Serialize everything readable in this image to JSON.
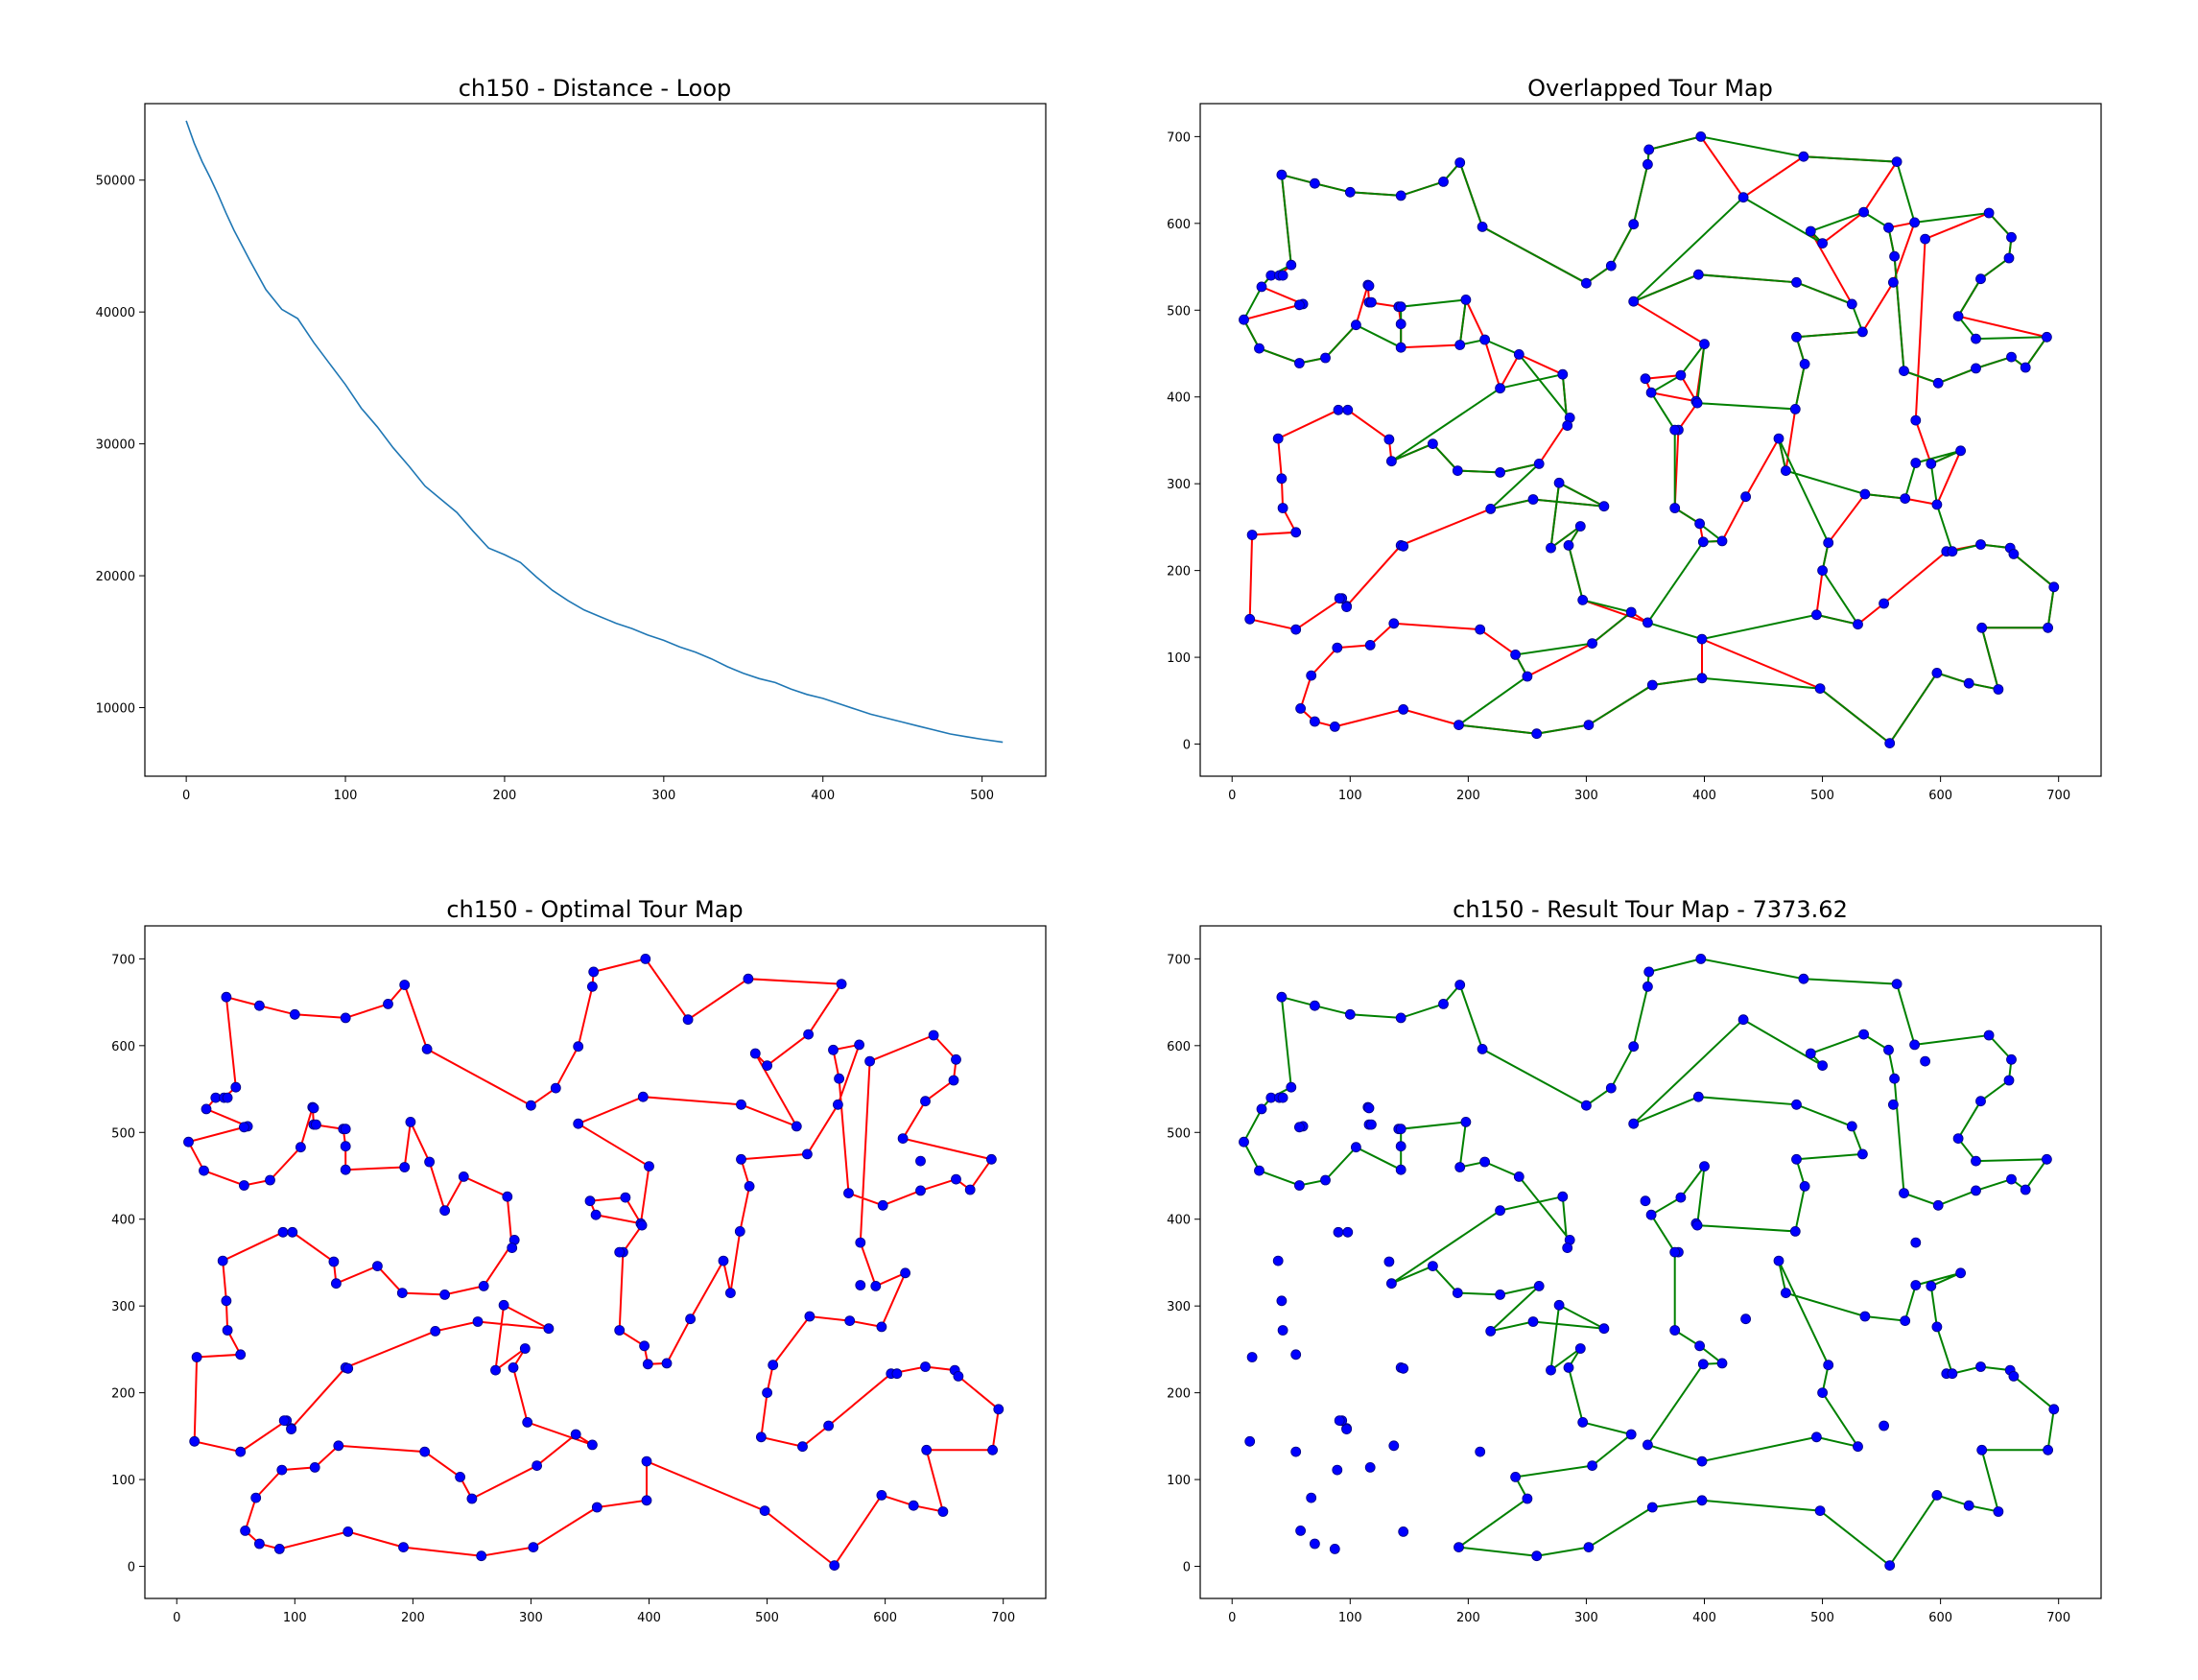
{
  "colors": {
    "loss_line": "#1f77b4",
    "optimal_tour": "#ff0000",
    "result_tour": "#008000",
    "city_marker": "#0000ff",
    "city_marker_edge": "#000080"
  },
  "chart_data": [
    {
      "type": "line",
      "title": "ch150 - Distance - Loop",
      "xlabel": "",
      "ylabel": "",
      "xlim": [
        -26,
        540
      ],
      "ylim": [
        4800,
        55800
      ],
      "xticks": [
        0,
        100,
        200,
        300,
        400,
        500
      ],
      "yticks": [
        10000,
        20000,
        30000,
        40000,
        50000
      ],
      "grid": false,
      "series": [
        {
          "x": [
            0,
            5,
            10,
            15,
            20,
            25,
            30,
            40,
            50,
            60,
            70,
            80,
            90,
            100,
            110,
            120,
            130,
            140,
            150,
            160,
            170,
            180,
            190,
            200,
            210,
            220,
            230,
            240,
            250,
            260,
            270,
            280,
            290,
            300,
            310,
            320,
            330,
            340,
            350,
            360,
            370,
            380,
            390,
            400,
            410,
            420,
            430,
            440,
            450,
            460,
            470,
            480,
            490,
            500,
            513
          ],
          "y": [
            54500,
            52800,
            51400,
            50200,
            48900,
            47500,
            46200,
            43900,
            41700,
            40200,
            39500,
            37700,
            36100,
            34500,
            32700,
            31300,
            29700,
            28300,
            26800,
            25800,
            24800,
            23400,
            22100,
            21600,
            21000,
            19900,
            18900,
            18100,
            17400,
            16900,
            16400,
            16000,
            15500,
            15100,
            14600,
            14200,
            13700,
            13100,
            12600,
            12200,
            11900,
            11400,
            11000,
            10700,
            10300,
            9900,
            9500,
            9200,
            8900,
            8600,
            8300,
            8000,
            7800,
            7600,
            7374
          ]
        }
      ]
    },
    {
      "type": "line",
      "title": "Overlapped Tour Map",
      "xlim": [
        -27,
        736
      ],
      "ylim": [
        -37,
        738
      ],
      "xticks": [
        0,
        100,
        200,
        300,
        400,
        500,
        600,
        700
      ],
      "yticks": [
        0,
        100,
        200,
        300,
        400,
        500,
        600,
        700
      ],
      "grid": false,
      "series": [
        {
          "source": "optimal_tour",
          "color": "#ff0000"
        },
        {
          "source": "result_tour",
          "color": "#008000"
        }
      ]
    },
    {
      "type": "line",
      "title": "ch150 - Optimal Tour Map",
      "xlim": [
        -27,
        736
      ],
      "ylim": [
        -37,
        738
      ],
      "xticks": [
        0,
        100,
        200,
        300,
        400,
        500,
        600,
        700
      ],
      "yticks": [
        0,
        100,
        200,
        300,
        400,
        500,
        600,
        700
      ],
      "grid": false,
      "series": [
        {
          "source": "optimal_tour",
          "color": "#ff0000"
        }
      ]
    },
    {
      "type": "line",
      "title": "ch150 - Result Tour Map - 7373.62",
      "xlim": [
        -27,
        736
      ],
      "ylim": [
        -37,
        738
      ],
      "xticks": [
        0,
        100,
        200,
        300,
        400,
        500,
        600,
        700
      ],
      "yticks": [
        0,
        100,
        200,
        300,
        400,
        500,
        600,
        700
      ],
      "grid": false,
      "series": [
        {
          "source": "result_tour",
          "color": "#008000"
        }
      ]
    }
  ],
  "optimal_tour": [
    [
      42,
      656
    ],
    [
      70,
      646
    ],
    [
      100,
      636
    ],
    [
      143,
      632
    ],
    [
      179,
      648
    ],
    [
      193,
      670
    ],
    [
      212,
      596
    ],
    [
      300,
      531
    ],
    [
      321,
      551
    ],
    [
      340,
      599
    ],
    [
      352,
      668
    ],
    [
      353,
      685
    ],
    [
      397,
      700
    ],
    [
      433,
      630
    ],
    [
      484,
      677
    ],
    [
      563,
      671
    ],
    [
      535,
      613
    ],
    [
      500,
      577
    ],
    [
      490,
      591
    ],
    [
      525,
      507
    ],
    [
      478,
      532
    ],
    [
      395,
      541
    ],
    [
      340,
      510
    ],
    [
      400,
      461
    ],
    [
      393,
      395
    ],
    [
      355,
      405
    ],
    [
      350,
      421
    ],
    [
      380,
      425
    ],
    [
      394,
      393
    ],
    [
      378,
      362
    ],
    [
      375,
      272
    ],
    [
      396,
      254
    ],
    [
      399,
      233
    ],
    [
      415,
      234
    ],
    [
      435,
      285
    ],
    [
      463,
      352
    ],
    [
      469,
      315
    ],
    [
      477,
      386
    ],
    [
      485,
      438
    ],
    [
      478,
      469
    ],
    [
      534,
      475
    ],
    [
      560,
      532
    ],
    [
      578,
      601
    ],
    [
      556,
      595
    ],
    [
      561,
      562
    ],
    [
      569,
      430
    ],
    [
      598,
      416
    ],
    [
      630,
      433
    ],
    [
      660,
      446
    ],
    [
      672,
      434
    ],
    [
      690,
      469
    ],
    [
      615,
      493
    ],
    [
      634,
      536
    ],
    [
      658,
      560
    ],
    [
      660,
      584
    ],
    [
      641,
      612
    ],
    [
      587,
      582
    ],
    [
      579,
      373
    ],
    [
      592,
      323
    ],
    [
      617,
      338
    ],
    [
      597,
      276
    ],
    [
      570,
      283
    ],
    [
      536,
      288
    ],
    [
      505,
      232
    ],
    [
      500,
      200
    ],
    [
      495,
      149
    ],
    [
      530,
      138
    ],
    [
      552,
      162
    ],
    [
      605,
      222
    ],
    [
      634,
      230
    ],
    [
      659,
      226
    ],
    [
      662,
      219
    ],
    [
      696,
      181
    ],
    [
      691,
      134
    ],
    [
      635,
      134
    ],
    [
      649,
      63
    ],
    [
      624,
      70
    ],
    [
      597,
      82
    ],
    [
      557,
      1
    ],
    [
      498,
      64
    ],
    [
      398,
      121
    ],
    [
      398,
      76
    ],
    [
      356,
      68
    ],
    [
      302,
      22
    ],
    [
      258,
      12
    ],
    [
      192,
      22
    ],
    [
      145,
      40
    ],
    [
      87,
      20
    ],
    [
      70,
      26
    ],
    [
      58,
      41
    ],
    [
      67,
      79
    ],
    [
      89,
      111
    ],
    [
      117,
      114
    ],
    [
      137,
      139
    ],
    [
      210,
      132
    ],
    [
      240,
      103
    ],
    [
      250,
      78
    ],
    [
      305,
      116
    ],
    [
      338,
      152
    ],
    [
      352,
      140
    ],
    [
      297,
      166
    ],
    [
      285,
      229
    ],
    [
      295,
      251
    ],
    [
      270,
      226
    ],
    [
      277,
      301
    ],
    [
      315,
      274
    ],
    [
      255,
      282
    ],
    [
      219,
      271
    ],
    [
      143,
      229
    ],
    [
      97,
      159
    ],
    [
      93,
      168
    ],
    [
      54,
      132
    ],
    [
      15,
      144
    ],
    [
      17,
      241
    ],
    [
      54,
      244
    ],
    [
      43,
      272
    ],
    [
      42,
      306
    ],
    [
      39,
      352
    ],
    [
      90,
      385
    ],
    [
      98,
      385
    ],
    [
      133,
      351
    ],
    [
      135,
      326
    ],
    [
      170,
      346
    ],
    [
      191,
      315
    ],
    [
      227,
      313
    ],
    [
      260,
      323
    ],
    [
      286,
      376
    ],
    [
      284,
      367
    ],
    [
      280,
      426
    ],
    [
      243,
      449
    ],
    [
      227,
      410
    ],
    [
      214,
      466
    ],
    [
      198,
      512
    ],
    [
      193,
      460
    ],
    [
      143,
      457
    ],
    [
      143,
      484
    ],
    [
      141,
      504
    ],
    [
      116,
      509
    ],
    [
      115,
      529
    ],
    [
      105,
      483
    ],
    [
      79,
      445
    ],
    [
      57,
      439
    ],
    [
      23,
      456
    ],
    [
      10,
      489
    ],
    [
      60,
      507
    ],
    [
      25,
      527
    ],
    [
      33,
      540
    ],
    [
      40,
      540
    ],
    [
      50,
      552
    ],
    [
      42,
      656
    ]
  ],
  "result_tour": [
    [
      42,
      656
    ],
    [
      70,
      646
    ],
    [
      100,
      636
    ],
    [
      143,
      632
    ],
    [
      179,
      648
    ],
    [
      193,
      670
    ],
    [
      212,
      596
    ],
    [
      300,
      531
    ],
    [
      321,
      551
    ],
    [
      340,
      599
    ],
    [
      352,
      668
    ],
    [
      353,
      685
    ],
    [
      397,
      700
    ],
    [
      484,
      677
    ],
    [
      563,
      671
    ],
    [
      578,
      601
    ],
    [
      641,
      612
    ],
    [
      660,
      584
    ],
    [
      658,
      560
    ],
    [
      634,
      536
    ],
    [
      615,
      493
    ],
    [
      630,
      467
    ],
    [
      690,
      469
    ],
    [
      672,
      434
    ],
    [
      660,
      446
    ],
    [
      630,
      433
    ],
    [
      598,
      416
    ],
    [
      569,
      430
    ],
    [
      561,
      562
    ],
    [
      556,
      595
    ],
    [
      535,
      613
    ],
    [
      490,
      591
    ],
    [
      500,
      577
    ],
    [
      433,
      630
    ],
    [
      340,
      510
    ],
    [
      395,
      541
    ],
    [
      478,
      532
    ],
    [
      525,
      507
    ],
    [
      534,
      475
    ],
    [
      478,
      469
    ],
    [
      485,
      438
    ],
    [
      477,
      386
    ],
    [
      394,
      393
    ],
    [
      400,
      461
    ],
    [
      380,
      425
    ],
    [
      355,
      405
    ],
    [
      375,
      362
    ],
    [
      375,
      272
    ],
    [
      396,
      254
    ],
    [
      415,
      234
    ],
    [
      399,
      233
    ],
    [
      352,
      140
    ],
    [
      398,
      121
    ],
    [
      495,
      149
    ],
    [
      530,
      138
    ],
    [
      500,
      200
    ],
    [
      505,
      232
    ],
    [
      463,
      352
    ],
    [
      469,
      315
    ],
    [
      536,
      288
    ],
    [
      570,
      283
    ],
    [
      579,
      324
    ],
    [
      617,
      338
    ],
    [
      592,
      323
    ],
    [
      597,
      276
    ],
    [
      610,
      222
    ],
    [
      634,
      230
    ],
    [
      659,
      226
    ],
    [
      662,
      219
    ],
    [
      696,
      181
    ],
    [
      691,
      134
    ],
    [
      635,
      134
    ],
    [
      649,
      63
    ],
    [
      624,
      70
    ],
    [
      597,
      82
    ],
    [
      557,
      1
    ],
    [
      498,
      64
    ],
    [
      398,
      76
    ],
    [
      356,
      68
    ],
    [
      302,
      22
    ],
    [
      258,
      12
    ],
    [
      192,
      22
    ],
    [
      250,
      78
    ],
    [
      240,
      103
    ],
    [
      305,
      116
    ],
    [
      338,
      152
    ],
    [
      297,
      166
    ],
    [
      285,
      229
    ],
    [
      295,
      251
    ],
    [
      270,
      226
    ],
    [
      277,
      301
    ],
    [
      315,
      274
    ],
    [
      255,
      282
    ],
    [
      219,
      271
    ],
    [
      260,
      323
    ],
    [
      227,
      313
    ],
    [
      191,
      315
    ],
    [
      170,
      346
    ],
    [
      135,
      326
    ],
    [
      227,
      410
    ],
    [
      280,
      426
    ],
    [
      284,
      367
    ],
    [
      286,
      376
    ],
    [
      243,
      449
    ],
    [
      214,
      466
    ],
    [
      193,
      460
    ],
    [
      198,
      512
    ],
    [
      143,
      504
    ],
    [
      143,
      484
    ],
    [
      143,
      457
    ],
    [
      105,
      483
    ],
    [
      79,
      445
    ],
    [
      57,
      439
    ],
    [
      23,
      456
    ],
    [
      10,
      489
    ],
    [
      25,
      527
    ],
    [
      33,
      540
    ],
    [
      50,
      552
    ],
    [
      42,
      656
    ]
  ],
  "extra_cities": [
    [
      118,
      509
    ],
    [
      116,
      528
    ],
    [
      57,
      506
    ],
    [
      43,
      540
    ],
    [
      90,
      385
    ],
    [
      145,
      228
    ],
    [
      97,
      158
    ],
    [
      91,
      168
    ],
    [
      145,
      40
    ]
  ]
}
